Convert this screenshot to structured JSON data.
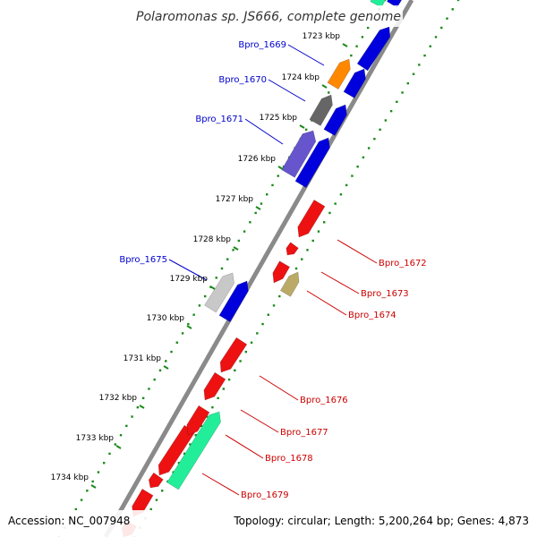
{
  "title": "Polaromonas sp. JS666, complete genome",
  "accession": "Accession: NC_007948",
  "topology": "Topology: circular; Length: 5,200,264 bp; Genes: 4,873",
  "colors": {
    "backbone": "#8a8a8a",
    "tick_dots": "#1a8a1a",
    "blue": "#0000dd",
    "red": "#ee1111",
    "orange": "#ff8800",
    "gray": "#666666",
    "slate": "#6655cc",
    "khaki": "#bbaa66",
    "silver": "#c8c8c8",
    "mint": "#22ee99",
    "top_label": "#0000cc",
    "bottom_label": "#cc0000"
  },
  "kbp_labels": [
    "1723 kbp",
    "1724 kbp",
    "1725 kbp",
    "1726 kbp",
    "1727 kbp",
    "1728 kbp",
    "1729 kbp",
    "1730 kbp",
    "1731 kbp",
    "1732 kbp",
    "1733 kbp",
    "1734 kbp"
  ],
  "genes_labeled": [
    {
      "name": "Bpro_1669",
      "side": "top",
      "color": "orange"
    },
    {
      "name": "Bpro_1670",
      "side": "top",
      "color": "gray"
    },
    {
      "name": "Bpro_1671",
      "side": "top",
      "color": "slate"
    },
    {
      "name": "Bpro_1672",
      "side": "bottom",
      "color": "red"
    },
    {
      "name": "Bpro_1673",
      "side": "bottom",
      "color": "red"
    },
    {
      "name": "Bpro_1674",
      "side": "bottom",
      "color": "khaki"
    },
    {
      "name": "Bpro_1675",
      "side": "top",
      "color": "silver"
    },
    {
      "name": "Bpro_1676",
      "side": "bottom",
      "color": "red"
    },
    {
      "name": "Bpro_1677",
      "side": "bottom",
      "color": "red"
    },
    {
      "name": "Bpro_1678",
      "side": "bottom",
      "color": "red"
    },
    {
      "name": "Bpro_1679",
      "side": "bottom",
      "color": "mint"
    }
  ]
}
